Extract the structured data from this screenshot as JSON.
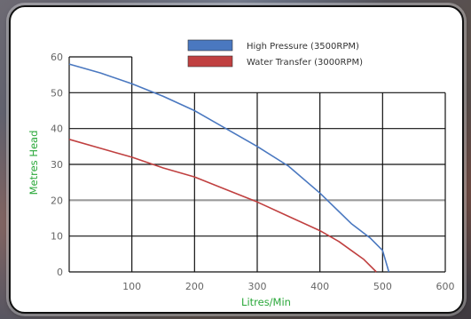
{
  "chart_data": {
    "type": "line",
    "title": "",
    "xlabel": "Litres/Min",
    "ylabel": "Metres Head",
    "xlim": [
      0,
      600
    ],
    "ylim": [
      0,
      60
    ],
    "xticks": [
      100,
      200,
      300,
      400,
      500,
      600
    ],
    "yticks": [
      0,
      10,
      20,
      30,
      40,
      50,
      60
    ],
    "grid": true,
    "legend_position": "top-right",
    "series": [
      {
        "name": "High Pressure (3500RPM)",
        "color": "#4a78c0",
        "x": [
          0,
          50,
          100,
          150,
          200,
          250,
          300,
          350,
          400,
          450,
          480,
          500,
          510
        ],
        "y": [
          58,
          55.5,
          52.5,
          49,
          45,
          40,
          35,
          29.5,
          22,
          13.5,
          9.5,
          6,
          0
        ]
      },
      {
        "name": "Water Transfer (3000RPM)",
        "color": "#c04040",
        "x": [
          0,
          50,
          100,
          150,
          200,
          250,
          300,
          350,
          400,
          430,
          450,
          470,
          490
        ],
        "y": [
          37,
          34.5,
          32,
          29,
          26.5,
          23,
          19.5,
          15.5,
          11.5,
          8.5,
          6,
          3.5,
          0
        ]
      }
    ]
  }
}
